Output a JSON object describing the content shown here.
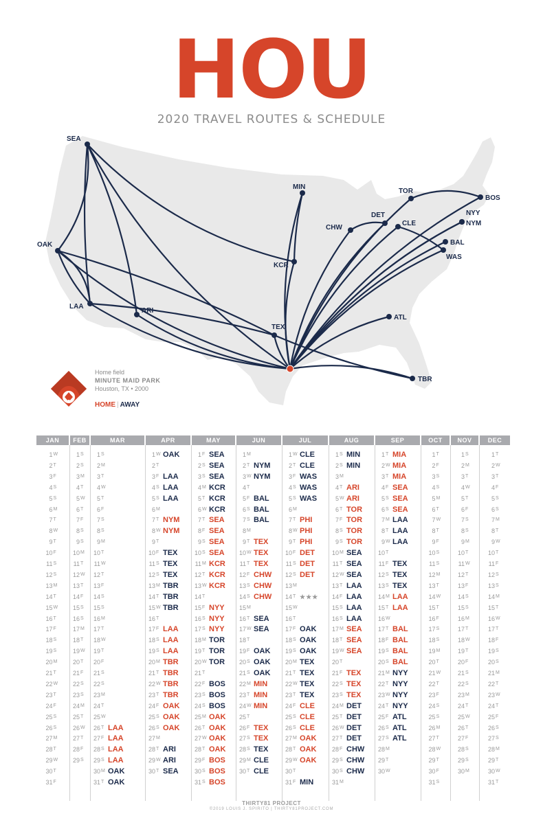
{
  "title": "HOU",
  "subtitle": "2020 TRAVEL ROUTES & SCHEDULE",
  "legend": {
    "label": "Home field",
    "park": "MINUTE MAID PARK",
    "location": "Houston, TX • 2000",
    "home": "HOME",
    "sep": "|",
    "away": "AWAY"
  },
  "colors": {
    "home": "#d6452a",
    "away": "#1b2a4a",
    "map": "#e9e9e9",
    "header": "#a9aaae"
  },
  "cities": [
    "SEA",
    "MIN",
    "TOR",
    "BOS",
    "DET",
    "NYY",
    "NYM",
    "CHW",
    "CLE",
    "OAK",
    "BAL",
    "KCR",
    "WAS",
    "LAA",
    "ARI",
    "TEX",
    "ATL",
    "TBR"
  ],
  "months": [
    {
      "name": "JAN",
      "days": [
        "W",
        "T",
        "F",
        "S",
        "S",
        "M",
        "T",
        "W",
        "T",
        "F",
        "S",
        "S",
        "M",
        "T",
        "W",
        "T",
        "F",
        "S",
        "S",
        "M",
        "T",
        "W",
        "T",
        "F",
        "S",
        "S",
        "M",
        "T",
        "W",
        "T",
        "F"
      ],
      "games": {}
    },
    {
      "name": "FEB",
      "days": [
        "S",
        "S",
        "M",
        "T",
        "W",
        "T",
        "F",
        "S",
        "S",
        "M",
        "T",
        "W",
        "T",
        "F",
        "S",
        "S",
        "M",
        "T",
        "W",
        "T",
        "F",
        "S",
        "S",
        "M",
        "T",
        "W",
        "T",
        "F",
        "S"
      ],
      "games": {}
    },
    {
      "name": "MAR",
      "days": [
        "S",
        "M",
        "T",
        "W",
        "T",
        "F",
        "S",
        "S",
        "M",
        "T",
        "W",
        "T",
        "F",
        "S",
        "S",
        "M",
        "T",
        "W",
        "T",
        "F",
        "S",
        "S",
        "M",
        "T",
        "W",
        "T",
        "F",
        "S",
        "S",
        "M",
        "T"
      ],
      "games": {
        "26": [
          "LAA",
          "h"
        ],
        "27": [
          "LAA",
          "h"
        ],
        "28": [
          "LAA",
          "h"
        ],
        "29": [
          "LAA",
          "h"
        ],
        "30": [
          "OAK",
          "a"
        ],
        "31": [
          "OAK",
          "a"
        ]
      }
    },
    {
      "name": "APR",
      "days": [
        "W",
        "T",
        "F",
        "S",
        "S",
        "M",
        "T",
        "W",
        "T",
        "F",
        "S",
        "S",
        "M",
        "T",
        "W",
        "T",
        "F",
        "S",
        "S",
        "M",
        "T",
        "W",
        "T",
        "F",
        "S",
        "S",
        "M",
        "T",
        "W",
        "T"
      ],
      "games": {
        "1": [
          "OAK",
          "a"
        ],
        "3": [
          "LAA",
          "a"
        ],
        "4": [
          "LAA",
          "a"
        ],
        "5": [
          "LAA",
          "a"
        ],
        "7": [
          "NYM",
          "h"
        ],
        "8": [
          "NYM",
          "h"
        ],
        "10": [
          "TEX",
          "a"
        ],
        "11": [
          "TEX",
          "a"
        ],
        "12": [
          "TEX",
          "a"
        ],
        "13": [
          "TBR",
          "a"
        ],
        "14": [
          "TBR",
          "a"
        ],
        "15": [
          "TBR",
          "a"
        ],
        "17": [
          "LAA",
          "h"
        ],
        "18": [
          "LAA",
          "h"
        ],
        "19": [
          "LAA",
          "h"
        ],
        "20": [
          "TBR",
          "h"
        ],
        "21": [
          "TBR",
          "h"
        ],
        "22": [
          "TBR",
          "h"
        ],
        "23": [
          "TBR",
          "h"
        ],
        "24": [
          "OAK",
          "h"
        ],
        "25": [
          "OAK",
          "h"
        ],
        "26": [
          "OAK",
          "h"
        ],
        "28": [
          "ARI",
          "a"
        ],
        "29": [
          "ARI",
          "a"
        ],
        "30": [
          "SEA",
          "a"
        ]
      }
    },
    {
      "name": "MAY",
      "days": [
        "F",
        "S",
        "S",
        "M",
        "T",
        "W",
        "T",
        "F",
        "S",
        "S",
        "M",
        "T",
        "W",
        "T",
        "F",
        "S",
        "S",
        "M",
        "T",
        "W",
        "T",
        "F",
        "S",
        "S",
        "M",
        "T",
        "W",
        "T",
        "F",
        "S",
        "S"
      ],
      "games": {
        "1": [
          "SEA",
          "a"
        ],
        "2": [
          "SEA",
          "a"
        ],
        "3": [
          "SEA",
          "a"
        ],
        "4": [
          "KCR",
          "a"
        ],
        "5": [
          "KCR",
          "a"
        ],
        "6": [
          "KCR",
          "a"
        ],
        "7": [
          "SEA",
          "h"
        ],
        "8": [
          "SEA",
          "h"
        ],
        "9": [
          "SEA",
          "h"
        ],
        "10": [
          "SEA",
          "h"
        ],
        "11": [
          "KCR",
          "h"
        ],
        "12": [
          "KCR",
          "h"
        ],
        "13": [
          "KCR",
          "h"
        ],
        "15": [
          "NYY",
          "h"
        ],
        "16": [
          "NYY",
          "h"
        ],
        "17": [
          "NYY",
          "h"
        ],
        "18": [
          "TOR",
          "a"
        ],
        "19": [
          "TOR",
          "a"
        ],
        "20": [
          "TOR",
          "a"
        ],
        "22": [
          "BOS",
          "a"
        ],
        "23": [
          "BOS",
          "a"
        ],
        "24": [
          "BOS",
          "a"
        ],
        "25": [
          "OAK",
          "h"
        ],
        "26": [
          "OAK",
          "h"
        ],
        "27": [
          "OAK",
          "h"
        ],
        "28": [
          "OAK",
          "h"
        ],
        "29": [
          "BOS",
          "h"
        ],
        "30": [
          "BOS",
          "h"
        ],
        "31": [
          "BOS",
          "h"
        ]
      }
    },
    {
      "name": "JUN",
      "days": [
        "M",
        "T",
        "W",
        "T",
        "F",
        "S",
        "S",
        "M",
        "T",
        "W",
        "T",
        "F",
        "S",
        "S",
        "M",
        "T",
        "W",
        "T",
        "F",
        "S",
        "S",
        "M",
        "T",
        "W",
        "T",
        "F",
        "S",
        "S",
        "M",
        "T"
      ],
      "games": {
        "2": [
          "NYM",
          "a"
        ],
        "3": [
          "NYM",
          "a"
        ],
        "5": [
          "BAL",
          "a"
        ],
        "6": [
          "BAL",
          "a"
        ],
        "7": [
          "BAL",
          "a"
        ],
        "9": [
          "TEX",
          "h"
        ],
        "10": [
          "TEX",
          "h"
        ],
        "11": [
          "TEX",
          "h"
        ],
        "12": [
          "CHW",
          "h"
        ],
        "13": [
          "CHW",
          "h"
        ],
        "14": [
          "CHW",
          "h"
        ],
        "16": [
          "SEA",
          "a"
        ],
        "17": [
          "SEA",
          "a"
        ],
        "19": [
          "OAK",
          "a"
        ],
        "20": [
          "OAK",
          "a"
        ],
        "21": [
          "OAK",
          "a"
        ],
        "22": [
          "MIN",
          "h"
        ],
        "23": [
          "MIN",
          "h"
        ],
        "24": [
          "MIN",
          "h"
        ],
        "26": [
          "TEX",
          "h"
        ],
        "27": [
          "TEX",
          "h"
        ],
        "28": [
          "TEX",
          "a"
        ],
        "29": [
          "CLE",
          "a"
        ],
        "30": [
          "CLE",
          "a"
        ]
      }
    },
    {
      "name": "JUL",
      "days": [
        "W",
        "T",
        "F",
        "S",
        "S",
        "M",
        "T",
        "W",
        "T",
        "F",
        "S",
        "S",
        "M",
        "T",
        "W",
        "T",
        "F",
        "S",
        "S",
        "M",
        "T",
        "W",
        "T",
        "F",
        "S",
        "S",
        "M",
        "T",
        "W",
        "T",
        "F"
      ],
      "games": {
        "1": [
          "CLE",
          "a"
        ],
        "2": [
          "CLE",
          "a"
        ],
        "3": [
          "WAS",
          "a"
        ],
        "4": [
          "WAS",
          "a"
        ],
        "5": [
          "WAS",
          "a"
        ],
        "7": [
          "PHI",
          "h"
        ],
        "8": [
          "PHI",
          "h"
        ],
        "9": [
          "PHI",
          "h"
        ],
        "10": [
          "DET",
          "h"
        ],
        "11": [
          "DET",
          "h"
        ],
        "12": [
          "DET",
          "h"
        ],
        "14": [
          "★★★",
          "s"
        ],
        "17": [
          "OAK",
          "a"
        ],
        "18": [
          "OAK",
          "a"
        ],
        "19": [
          "OAK",
          "a"
        ],
        "20": [
          "TEX",
          "a"
        ],
        "21": [
          "TEX",
          "a"
        ],
        "22": [
          "TEX",
          "a"
        ],
        "23": [
          "TEX",
          "a"
        ],
        "24": [
          "CLE",
          "h"
        ],
        "25": [
          "CLE",
          "h"
        ],
        "26": [
          "CLE",
          "h"
        ],
        "27": [
          "OAK",
          "h"
        ],
        "28": [
          "OAK",
          "h"
        ],
        "29": [
          "OAK",
          "h"
        ],
        "31": [
          "MIN",
          "a"
        ]
      }
    },
    {
      "name": "AUG",
      "days": [
        "S",
        "S",
        "M",
        "T",
        "W",
        "T",
        "F",
        "S",
        "S",
        "M",
        "T",
        "W",
        "T",
        "F",
        "S",
        "S",
        "M",
        "T",
        "W",
        "T",
        "F",
        "S",
        "S",
        "M",
        "T",
        "W",
        "T",
        "F",
        "S",
        "S",
        "M"
      ],
      "games": {
        "1": [
          "MIN",
          "a"
        ],
        "2": [
          "MIN",
          "a"
        ],
        "4": [
          "ARI",
          "h"
        ],
        "5": [
          "ARI",
          "h"
        ],
        "6": [
          "TOR",
          "h"
        ],
        "7": [
          "TOR",
          "h"
        ],
        "8": [
          "TOR",
          "h"
        ],
        "9": [
          "TOR",
          "h"
        ],
        "10": [
          "SEA",
          "a"
        ],
        "11": [
          "SEA",
          "a"
        ],
        "12": [
          "SEA",
          "a"
        ],
        "13": [
          "LAA",
          "a"
        ],
        "14": [
          "LAA",
          "a"
        ],
        "15": [
          "LAA",
          "a"
        ],
        "16": [
          "LAA",
          "a"
        ],
        "17": [
          "SEA",
          "h"
        ],
        "18": [
          "SEA",
          "h"
        ],
        "19": [
          "SEA",
          "h"
        ],
        "21": [
          "TEX",
          "h"
        ],
        "22": [
          "TEX",
          "h"
        ],
        "23": [
          "TEX",
          "h"
        ],
        "24": [
          "DET",
          "a"
        ],
        "25": [
          "DET",
          "a"
        ],
        "26": [
          "DET",
          "a"
        ],
        "27": [
          "DET",
          "a"
        ],
        "28": [
          "CHW",
          "a"
        ],
        "29": [
          "CHW",
          "a"
        ],
        "30": [
          "CHW",
          "a"
        ]
      }
    },
    {
      "name": "SEP",
      "days": [
        "T",
        "W",
        "T",
        "F",
        "S",
        "S",
        "M",
        "T",
        "W",
        "T",
        "F",
        "S",
        "S",
        "M",
        "T",
        "W",
        "T",
        "F",
        "S",
        "S",
        "M",
        "T",
        "W",
        "T",
        "F",
        "S",
        "S",
        "M",
        "T",
        "W"
      ],
      "games": {
        "1": [
          "MIA",
          "h"
        ],
        "2": [
          "MIA",
          "h"
        ],
        "3": [
          "MIA",
          "h"
        ],
        "4": [
          "SEA",
          "h"
        ],
        "5": [
          "SEA",
          "h"
        ],
        "6": [
          "SEA",
          "h"
        ],
        "7": [
          "LAA",
          "a"
        ],
        "8": [
          "LAA",
          "a"
        ],
        "9": [
          "LAA",
          "a"
        ],
        "11": [
          "TEX",
          "a"
        ],
        "12": [
          "TEX",
          "a"
        ],
        "13": [
          "TEX",
          "a"
        ],
        "14": [
          "LAA",
          "h"
        ],
        "15": [
          "LAA",
          "h"
        ],
        "17": [
          "BAL",
          "h"
        ],
        "18": [
          "BAL",
          "h"
        ],
        "19": [
          "BAL",
          "h"
        ],
        "20": [
          "BAL",
          "h"
        ],
        "21": [
          "NYY",
          "a"
        ],
        "22": [
          "NYY",
          "a"
        ],
        "23": [
          "NYY",
          "a"
        ],
        "24": [
          "NYY",
          "a"
        ],
        "25": [
          "ATL",
          "a"
        ],
        "26": [
          "ATL",
          "a"
        ],
        "27": [
          "ATL",
          "a"
        ]
      }
    },
    {
      "name": "OCT",
      "days": [
        "T",
        "F",
        "S",
        "S",
        "M",
        "T",
        "W",
        "T",
        "F",
        "S",
        "S",
        "M",
        "T",
        "W",
        "T",
        "F",
        "S",
        "S",
        "M",
        "T",
        "W",
        "T",
        "F",
        "S",
        "S",
        "M",
        "T",
        "W",
        "T",
        "F",
        "S"
      ],
      "games": {}
    },
    {
      "name": "NOV",
      "days": [
        "S",
        "M",
        "T",
        "W",
        "T",
        "F",
        "S",
        "S",
        "M",
        "T",
        "W",
        "T",
        "F",
        "S",
        "S",
        "M",
        "T",
        "W",
        "T",
        "F",
        "S",
        "S",
        "M",
        "T",
        "W",
        "T",
        "F",
        "S",
        "S",
        "M"
      ],
      "games": {}
    },
    {
      "name": "DEC",
      "days": [
        "T",
        "W",
        "T",
        "F",
        "S",
        "S",
        "M",
        "T",
        "W",
        "T",
        "F",
        "S",
        "S",
        "M",
        "T",
        "W",
        "T",
        "F",
        "S",
        "S",
        "M",
        "T",
        "W",
        "T",
        "F",
        "S",
        "S",
        "M",
        "T",
        "W",
        "T"
      ],
      "games": {}
    }
  ],
  "footer": {
    "brand": "THIRTY81 PROJECT",
    "credit": "©2019 LOUIS J. SPIRITO | THIRTY81PROJECT.COM"
  }
}
